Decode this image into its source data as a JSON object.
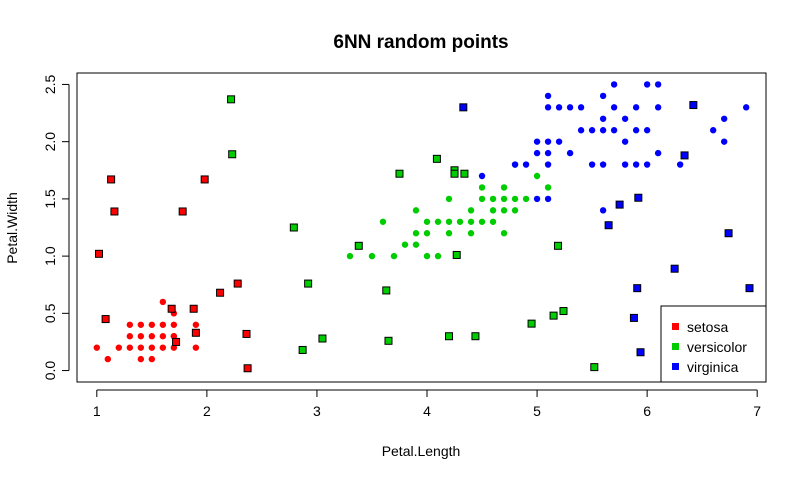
{
  "chart_data": {
    "type": "scatter",
    "title": "6NN random points",
    "xlabel": "Petal.Length",
    "ylabel": "Petal.Width",
    "xlim": [
      0.82,
      7.08
    ],
    "ylim": [
      -0.1,
      2.6
    ],
    "xticks": [
      1,
      2,
      3,
      4,
      5,
      6,
      7
    ],
    "yticks": [
      0.0,
      0.5,
      1.0,
      1.5,
      2.0,
      2.5
    ],
    "ytick_labels": [
      "0.0",
      "0.5",
      "1.0",
      "1.5",
      "2.0",
      "2.5"
    ],
    "grid": false,
    "legend_position": "bottom-right",
    "legend": [
      "setosa",
      "versicolor",
      "virginica"
    ],
    "colors": {
      "setosa": "#ff0000",
      "versicolor": "#00cd00",
      "virginica": "#0000ff"
    },
    "series": [
      {
        "name": "setosa",
        "marker": "circle",
        "points": [
          [
            1.0,
            0.2
          ],
          [
            1.1,
            0.1
          ],
          [
            1.2,
            0.2
          ],
          [
            1.3,
            0.2
          ],
          [
            1.3,
            0.3
          ],
          [
            1.3,
            0.4
          ],
          [
            1.4,
            0.1
          ],
          [
            1.4,
            0.2
          ],
          [
            1.4,
            0.3
          ],
          [
            1.5,
            0.1
          ],
          [
            1.5,
            0.2
          ],
          [
            1.5,
            0.3
          ],
          [
            1.5,
            0.4
          ],
          [
            1.6,
            0.2
          ],
          [
            1.6,
            0.4
          ],
          [
            1.6,
            0.6
          ],
          [
            1.7,
            0.2
          ],
          [
            1.7,
            0.3
          ],
          [
            1.7,
            0.4
          ],
          [
            1.7,
            0.5
          ],
          [
            1.9,
            0.2
          ],
          [
            1.9,
            0.4
          ],
          [
            1.4,
            0.4
          ],
          [
            1.6,
            0.3
          ],
          [
            1.7,
            0.3
          ]
        ]
      },
      {
        "name": "versicolor",
        "marker": "circle",
        "points": [
          [
            3.3,
            1.0
          ],
          [
            3.5,
            1.0
          ],
          [
            3.6,
            1.3
          ],
          [
            3.7,
            1.0
          ],
          [
            3.8,
            1.1
          ],
          [
            3.9,
            1.1
          ],
          [
            3.9,
            1.2
          ],
          [
            3.9,
            1.4
          ],
          [
            4.0,
            1.0
          ],
          [
            4.0,
            1.2
          ],
          [
            4.0,
            1.3
          ],
          [
            4.1,
            1.0
          ],
          [
            4.1,
            1.3
          ],
          [
            4.2,
            1.2
          ],
          [
            4.2,
            1.3
          ],
          [
            4.2,
            1.5
          ],
          [
            4.3,
            1.3
          ],
          [
            4.4,
            1.2
          ],
          [
            4.4,
            1.3
          ],
          [
            4.4,
            1.4
          ],
          [
            4.5,
            1.3
          ],
          [
            4.5,
            1.5
          ],
          [
            4.6,
            1.3
          ],
          [
            4.6,
            1.4
          ],
          [
            4.6,
            1.5
          ],
          [
            4.7,
            1.2
          ],
          [
            4.7,
            1.4
          ],
          [
            4.7,
            1.5
          ],
          [
            4.7,
            1.6
          ],
          [
            4.8,
            1.4
          ],
          [
            4.8,
            1.8
          ],
          [
            4.9,
            1.5
          ],
          [
            5.0,
            1.7
          ],
          [
            5.1,
            1.6
          ],
          [
            4.5,
            1.6
          ],
          [
            4.8,
            1.5
          ]
        ]
      },
      {
        "name": "virginica",
        "marker": "circle",
        "points": [
          [
            4.5,
            1.7
          ],
          [
            4.8,
            1.8
          ],
          [
            4.9,
            1.8
          ],
          [
            5.0,
            1.5
          ],
          [
            5.0,
            1.9
          ],
          [
            5.0,
            2.0
          ],
          [
            5.1,
            1.5
          ],
          [
            5.1,
            1.8
          ],
          [
            5.1,
            1.9
          ],
          [
            5.1,
            2.0
          ],
          [
            5.1,
            2.3
          ],
          [
            5.1,
            2.4
          ],
          [
            5.2,
            2.0
          ],
          [
            5.2,
            2.3
          ],
          [
            5.3,
            1.9
          ],
          [
            5.3,
            2.3
          ],
          [
            5.4,
            2.1
          ],
          [
            5.4,
            2.3
          ],
          [
            5.5,
            1.8
          ],
          [
            5.5,
            2.1
          ],
          [
            5.6,
            1.4
          ],
          [
            5.6,
            1.8
          ],
          [
            5.6,
            2.1
          ],
          [
            5.6,
            2.2
          ],
          [
            5.6,
            2.4
          ],
          [
            5.7,
            2.1
          ],
          [
            5.7,
            2.3
          ],
          [
            5.7,
            2.5
          ],
          [
            5.8,
            1.8
          ],
          [
            5.8,
            2.2
          ],
          [
            5.9,
            2.1
          ],
          [
            5.9,
            2.3
          ],
          [
            6.0,
            1.8
          ],
          [
            6.0,
            2.5
          ],
          [
            6.1,
            1.9
          ],
          [
            6.1,
            2.3
          ],
          [
            6.1,
            2.5
          ],
          [
            6.3,
            1.8
          ],
          [
            6.6,
            2.1
          ],
          [
            6.7,
            2.0
          ],
          [
            6.7,
            2.2
          ],
          [
            6.9,
            2.3
          ],
          [
            5.9,
            1.8
          ],
          [
            5.8,
            2.0
          ],
          [
            6.0,
            2.1
          ]
        ]
      },
      {
        "name": "setosa",
        "marker": "square",
        "points": [
          [
            1.02,
            1.02
          ],
          [
            1.08,
            0.45
          ],
          [
            1.13,
            1.67
          ],
          [
            1.16,
            1.39
          ],
          [
            1.68,
            0.54
          ],
          [
            1.72,
            0.25
          ],
          [
            1.78,
            1.39
          ],
          [
            1.88,
            0.54
          ],
          [
            1.9,
            0.33
          ],
          [
            1.98,
            1.67
          ],
          [
            2.12,
            0.68
          ],
          [
            2.28,
            0.76
          ],
          [
            2.36,
            0.32
          ],
          [
            2.37,
            0.02
          ]
        ]
      },
      {
        "name": "versicolor",
        "marker": "square",
        "points": [
          [
            2.22,
            2.37
          ],
          [
            2.23,
            1.89
          ],
          [
            2.79,
            1.25
          ],
          [
            2.87,
            0.18
          ],
          [
            2.92,
            0.76
          ],
          [
            3.05,
            0.28
          ],
          [
            3.38,
            1.09
          ],
          [
            3.63,
            0.7
          ],
          [
            3.65,
            0.26
          ],
          [
            3.75,
            1.72
          ],
          [
            4.09,
            1.85
          ],
          [
            4.2,
            0.3
          ],
          [
            4.25,
            1.75
          ],
          [
            4.25,
            1.72
          ],
          [
            4.27,
            1.01
          ],
          [
            4.34,
            1.72
          ],
          [
            4.44,
            0.3
          ],
          [
            4.95,
            0.41
          ],
          [
            5.15,
            0.48
          ],
          [
            5.19,
            1.09
          ],
          [
            5.24,
            0.52
          ],
          [
            5.52,
            0.03
          ]
        ]
      },
      {
        "name": "virginica",
        "marker": "square",
        "points": [
          [
            4.33,
            2.3
          ],
          [
            5.65,
            1.27
          ],
          [
            5.75,
            1.45
          ],
          [
            5.88,
            0.46
          ],
          [
            5.91,
            0.72
          ],
          [
            5.92,
            1.51
          ],
          [
            5.94,
            0.16
          ],
          [
            6.25,
            0.89
          ],
          [
            6.34,
            1.88
          ],
          [
            6.42,
            2.32
          ],
          [
            6.74,
            1.2
          ],
          [
            6.93,
            0.72
          ]
        ]
      }
    ]
  }
}
